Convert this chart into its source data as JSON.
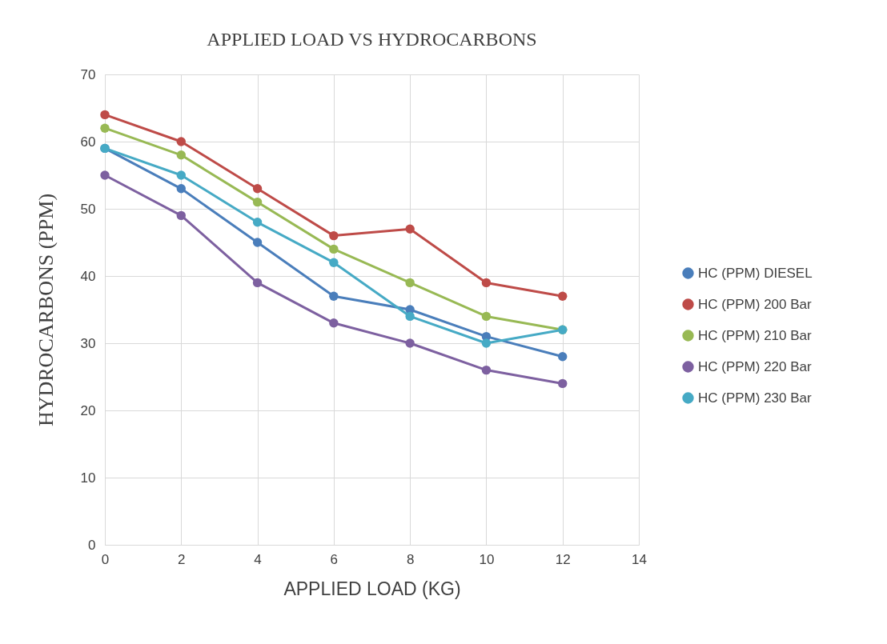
{
  "chart_data": {
    "type": "line",
    "title": "APPLIED LOAD VS HYDROCARBONS",
    "xlabel": "APPLIED LOAD (KG)",
    "ylabel": "HYDROCARBONS (PPM)",
    "x": [
      0,
      2,
      4,
      6,
      8,
      10,
      12
    ],
    "series": [
      {
        "name": "HC (PPM) DIESEL",
        "color": "#4a7ebb",
        "values": [
          59,
          53,
          45,
          37,
          35,
          31,
          28
        ]
      },
      {
        "name": "HC (PPM) 200 Bar",
        "color": "#be4b48",
        "values": [
          64,
          60,
          53,
          46,
          47,
          39,
          37
        ]
      },
      {
        "name": "HC (PPM) 210 Bar",
        "color": "#98b954",
        "values": [
          62,
          58,
          51,
          44,
          39,
          34,
          32
        ]
      },
      {
        "name": "HC (PPM) 220 Bar",
        "color": "#7d60a0",
        "values": [
          55,
          49,
          39,
          33,
          30,
          26,
          24
        ]
      },
      {
        "name": "HC (PPM) 230 Bar",
        "color": "#46aac5",
        "values": [
          59,
          55,
          48,
          42,
          34,
          30,
          32
        ]
      }
    ],
    "xlim": [
      0,
      14
    ],
    "xticks": [
      0,
      2,
      4,
      6,
      8,
      10,
      12,
      14
    ],
    "ylim": [
      0,
      70
    ],
    "yticks": [
      0,
      10,
      20,
      30,
      40,
      50,
      60,
      70
    ],
    "grid": true,
    "legend": "right",
    "marker": "circle",
    "line_style": "solid"
  }
}
